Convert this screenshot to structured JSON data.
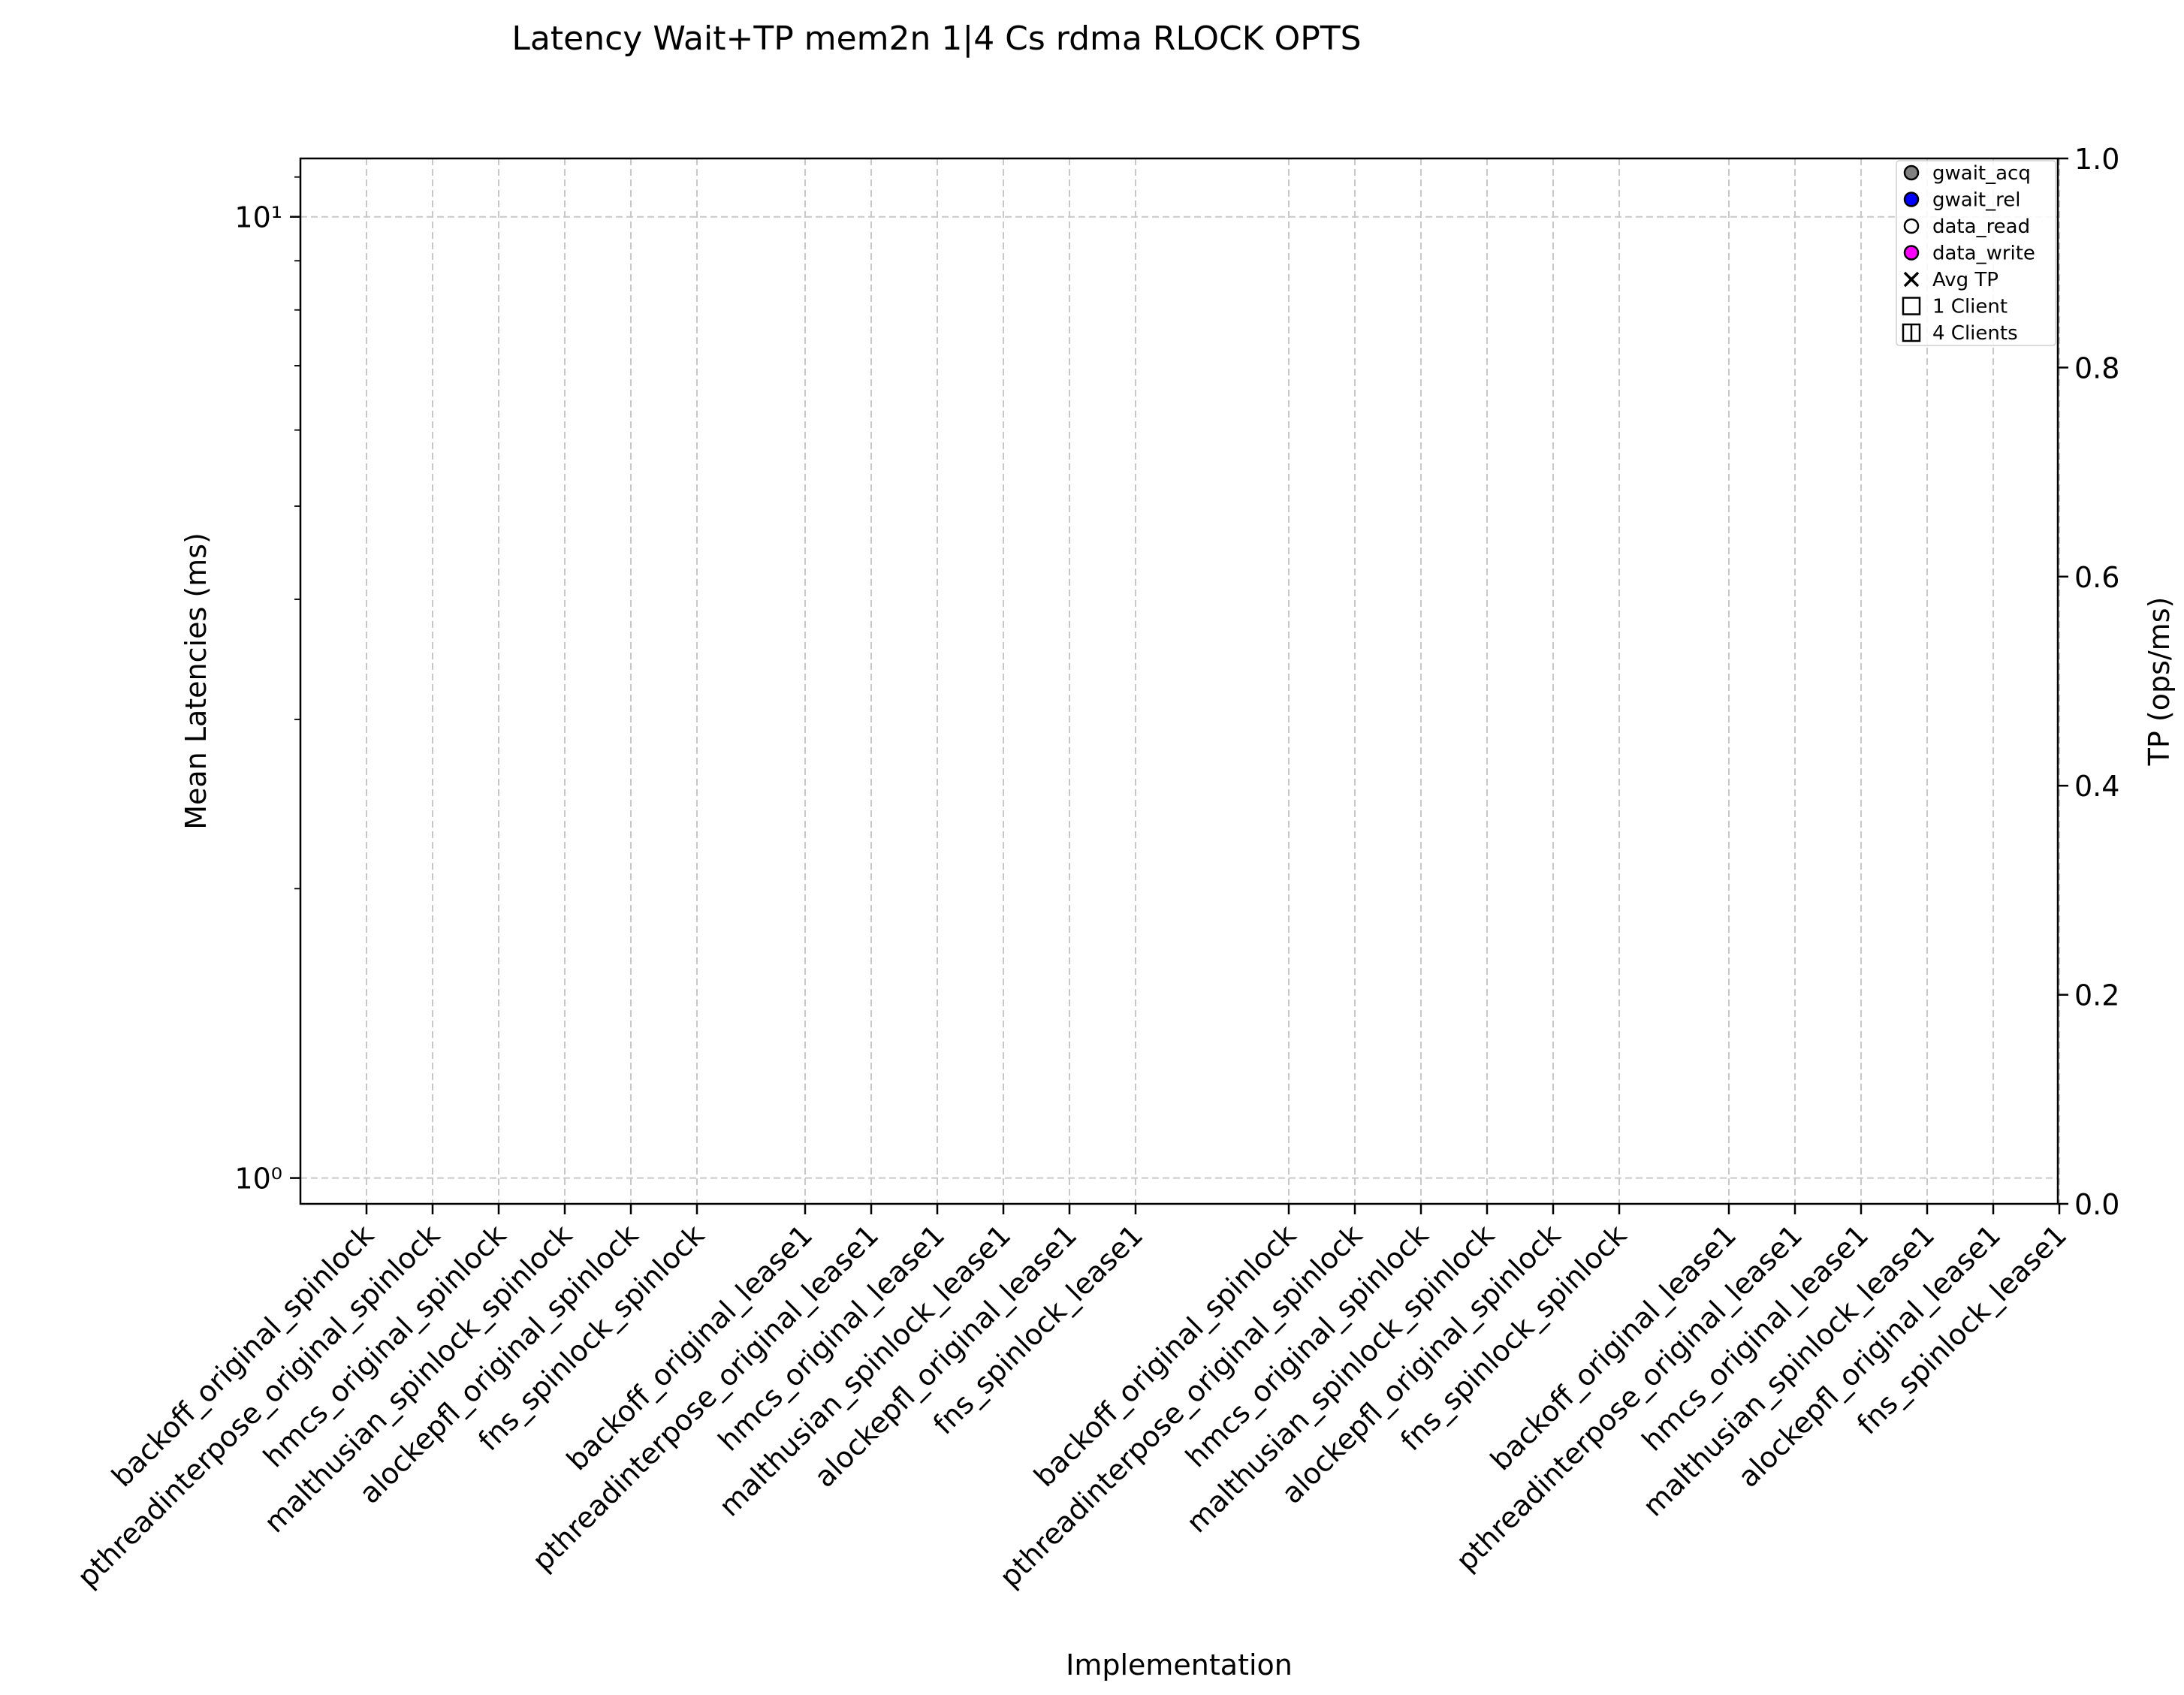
{
  "chart_data": {
    "type": "scatter",
    "title": "Latency Wait+TP mem2n 1|4 Cs rdma RLOCK OPTS",
    "xlabel": "Implementation",
    "ylabel": "Mean Latencies (ms)",
    "y2label": "TP (ops/ms)",
    "yscale": "log",
    "ylim": [
      0.94,
      11.5
    ],
    "y_ticks": [
      {
        "value": 1,
        "label": "10⁰"
      },
      {
        "value": 10,
        "label": "10¹"
      }
    ],
    "y2lim": [
      0.0,
      1.0
    ],
    "y2_ticks": [
      "0.0",
      "0.2",
      "0.4",
      "0.6",
      "0.8",
      "1.0"
    ],
    "grid": true,
    "legend_position": "top-right",
    "categories": [
      "backoff_original_spinlock",
      "pthreadinterpose_original_spinlock",
      "hmcs_original_spinlock",
      "malthusian_spinlock_spinlock",
      "alockepfl_original_spinlock",
      "fns_spinlock_spinlock",
      "backoff_original_lease1",
      "pthreadinterpose_original_lease1",
      "hmcs_original_lease1",
      "malthusian_spinlock_lease1",
      "alockepfl_original_lease1",
      "fns_spinlock_lease1",
      "backoff_original_spinlock",
      "pthreadinterpose_original_spinlock",
      "hmcs_original_spinlock",
      "malthusian_spinlock_spinlock",
      "alockepfl_original_spinlock",
      "fns_spinlock_spinlock",
      "backoff_original_lease1",
      "pthreadinterpose_original_lease1",
      "hmcs_original_lease1",
      "malthusian_spinlock_lease1",
      "alockepfl_original_lease1",
      "fns_spinlock_lease1"
    ],
    "series": [
      {
        "name": "gwait_acq",
        "values": [],
        "color": "#808080",
        "marker": "circle-filled"
      },
      {
        "name": "gwait_rel",
        "values": [],
        "color": "#0000ff",
        "marker": "circle-filled"
      },
      {
        "name": "data_read",
        "values": [],
        "color": "#ffffff",
        "marker": "circle-open"
      },
      {
        "name": "data_write",
        "values": [],
        "color": "#ff00ff",
        "marker": "circle-filled"
      },
      {
        "name": "Avg TP",
        "values": [],
        "color": "#000000",
        "marker": "x"
      }
    ],
    "legend": [
      {
        "label": "gwait_acq",
        "marker": "circle-filled",
        "color": "#808080"
      },
      {
        "label": "gwait_rel",
        "marker": "circle-filled",
        "color": "#0000ff"
      },
      {
        "label": "data_read",
        "marker": "circle-open",
        "color": "#ffffff"
      },
      {
        "label": "data_write",
        "marker": "circle-filled",
        "color": "#ff00ff"
      },
      {
        "label": "Avg TP",
        "marker": "x",
        "color": "#000000"
      },
      {
        "label": "1 Client",
        "marker": "square",
        "color": "#000000"
      },
      {
        "label": "4 Clients",
        "marker": "square-split",
        "color": "#000000"
      }
    ]
  }
}
